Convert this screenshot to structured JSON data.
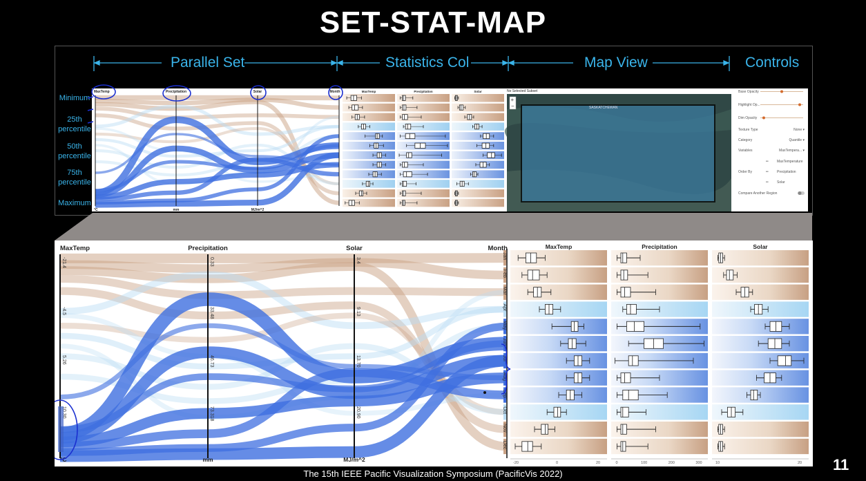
{
  "slide": {
    "title": "SET-STAT-MAP",
    "footer": "The 15th IEEE Pacific Visualization Symposium (PacificVis 2022)",
    "page_number": "11",
    "accent_color": "#3ab4ea",
    "annotation_color": "#1a2fd0"
  },
  "sections": [
    "Parallel Set",
    "Statistics Col",
    "Map View",
    "Controls"
  ],
  "percentiles": [
    "Minimum",
    "25th\npercentile",
    "50th\npercentile",
    "75th\npercentile",
    "Maximum"
  ],
  "parallel_set": {
    "axes": [
      {
        "name": "MaxTemp",
        "unit": "°C",
        "ticks": [
          "-21.4",
          "-4.5",
          "5.26",
          "10.30"
        ]
      },
      {
        "name": "Precipitation",
        "unit": "mm",
        "ticks": [
          "0.33",
          "33.48",
          "46.73",
          "73.318"
        ]
      },
      {
        "name": "Solar",
        "unit": "MJ/m^2",
        "ticks": [
          "3.4",
          "9.13",
          "13.70",
          "20.90"
        ]
      },
      {
        "name": "Month",
        "unit": "",
        "ticks": []
      }
    ],
    "months": [
      "Jan",
      "Feb",
      "Mar",
      "Apr",
      "May",
      "Jun",
      "Jul",
      "Aug",
      "Sep",
      "Oct",
      "Nov",
      "Dec"
    ]
  },
  "statistics": {
    "columns": [
      "MaxTemp",
      "Precipitation",
      "Solar"
    ],
    "axis_ticks": [
      [
        "-20",
        "0",
        "20"
      ],
      [
        "0",
        "100",
        "200",
        "300"
      ],
      [
        "10",
        "20"
      ]
    ],
    "tones": [
      "warm",
      "warm",
      "warm",
      "cool",
      "blue",
      "blue",
      "blue",
      "blue",
      "blue",
      "cool",
      "warm",
      "warm"
    ],
    "boxplots": {
      "MaxTemp": [
        {
          "wl": 0.08,
          "q1": 0.16,
          "med": 0.21,
          "q3": 0.27,
          "wh": 0.36
        },
        {
          "wl": 0.12,
          "q1": 0.18,
          "med": 0.23,
          "q3": 0.3,
          "wh": 0.38
        },
        {
          "wl": 0.18,
          "q1": 0.24,
          "med": 0.28,
          "q3": 0.32,
          "wh": 0.42
        },
        {
          "wl": 0.3,
          "q1": 0.36,
          "med": 0.4,
          "q3": 0.44,
          "wh": 0.52
        },
        {
          "wl": 0.43,
          "q1": 0.63,
          "med": 0.66,
          "q3": 0.7,
          "wh": 0.76
        },
        {
          "wl": 0.52,
          "q1": 0.6,
          "med": 0.64,
          "q3": 0.68,
          "wh": 0.78
        },
        {
          "wl": 0.58,
          "q1": 0.66,
          "med": 0.7,
          "q3": 0.74,
          "wh": 0.82
        },
        {
          "wl": 0.58,
          "q1": 0.66,
          "med": 0.7,
          "q3": 0.74,
          "wh": 0.82
        },
        {
          "wl": 0.5,
          "q1": 0.58,
          "med": 0.62,
          "q3": 0.66,
          "wh": 0.74
        },
        {
          "wl": 0.38,
          "q1": 0.45,
          "med": 0.49,
          "q3": 0.52,
          "wh": 0.58
        },
        {
          "wl": 0.25,
          "q1": 0.32,
          "med": 0.36,
          "q3": 0.39,
          "wh": 0.46
        },
        {
          "wl": 0.05,
          "q1": 0.12,
          "med": 0.18,
          "q3": 0.23,
          "wh": 0.32
        }
      ],
      "Precipitation": [
        {
          "wl": 0.06,
          "q1": 0.1,
          "med": 0.12,
          "q3": 0.16,
          "wh": 0.3
        },
        {
          "wl": 0.06,
          "q1": 0.1,
          "med": 0.13,
          "q3": 0.17,
          "wh": 0.38
        },
        {
          "wl": 0.06,
          "q1": 0.1,
          "med": 0.14,
          "q3": 0.2,
          "wh": 0.46
        },
        {
          "wl": 0.12,
          "q1": 0.16,
          "med": 0.2,
          "q3": 0.26,
          "wh": 0.5
        },
        {
          "wl": 0.06,
          "q1": 0.16,
          "med": 0.24,
          "q3": 0.34,
          "wh": 0.92
        },
        {
          "wl": 0.18,
          "q1": 0.34,
          "med": 0.44,
          "q3": 0.54,
          "wh": 0.96
        },
        {
          "wl": 0.04,
          "q1": 0.18,
          "med": 0.22,
          "q3": 0.28,
          "wh": 0.85
        },
        {
          "wl": 0.06,
          "q1": 0.1,
          "med": 0.14,
          "q3": 0.2,
          "wh": 0.5
        },
        {
          "wl": 0.06,
          "q1": 0.12,
          "med": 0.18,
          "q3": 0.28,
          "wh": 0.58
        },
        {
          "wl": 0.06,
          "q1": 0.1,
          "med": 0.12,
          "q3": 0.18,
          "wh": 0.36
        },
        {
          "wl": 0.06,
          "q1": 0.1,
          "med": 0.12,
          "q3": 0.16,
          "wh": 0.46
        },
        {
          "wl": 0.06,
          "q1": 0.1,
          "med": 0.12,
          "q3": 0.15,
          "wh": 0.38
        }
      ],
      "Solar": [
        {
          "wl": 0.06,
          "q1": 0.07,
          "med": 0.09,
          "q3": 0.11,
          "wh": 0.13
        },
        {
          "wl": 0.12,
          "q1": 0.15,
          "med": 0.18,
          "q3": 0.22,
          "wh": 0.26
        },
        {
          "wl": 0.25,
          "q1": 0.3,
          "med": 0.34,
          "q3": 0.38,
          "wh": 0.42
        },
        {
          "wl": 0.4,
          "q1": 0.44,
          "med": 0.48,
          "q3": 0.52,
          "wh": 0.58
        },
        {
          "wl": 0.55,
          "q1": 0.6,
          "med": 0.66,
          "q3": 0.72,
          "wh": 0.8
        },
        {
          "wl": 0.48,
          "q1": 0.58,
          "med": 0.65,
          "q3": 0.72,
          "wh": 0.8
        },
        {
          "wl": 0.6,
          "q1": 0.68,
          "med": 0.76,
          "q3": 0.82,
          "wh": 0.95
        },
        {
          "wl": 0.46,
          "q1": 0.54,
          "med": 0.6,
          "q3": 0.66,
          "wh": 0.72
        },
        {
          "wl": 0.36,
          "q1": 0.4,
          "med": 0.43,
          "q3": 0.47,
          "wh": 0.5
        },
        {
          "wl": 0.1,
          "q1": 0.16,
          "med": 0.2,
          "q3": 0.24,
          "wh": 0.32
        },
        {
          "wl": 0.06,
          "q1": 0.07,
          "med": 0.09,
          "q3": 0.11,
          "wh": 0.13
        },
        {
          "wl": 0.06,
          "q1": 0.07,
          "med": 0.09,
          "q3": 0.11,
          "wh": 0.13
        }
      ]
    }
  },
  "map": {
    "header": "No Selected Subset",
    "region_label": "SASKATCHEWAN",
    "zoom_in": "+",
    "zoom_out": "−"
  },
  "controls": {
    "sliders": [
      {
        "label": "Base Opacity",
        "value": 0.5
      },
      {
        "label": "Highlight Op...",
        "value": 0.92
      },
      {
        "label": "Dim Opacity",
        "value": 0.08
      }
    ],
    "selects": [
      {
        "label": "Texture Type",
        "value": "None"
      },
      {
        "label": "Category",
        "value": "Quantile"
      },
      {
        "label": "Variables",
        "value": "MaxTempera..."
      }
    ],
    "order_by_label": "Order By",
    "order_items": [
      "MaxTemperature",
      "Precipitation",
      "Solar"
    ],
    "compare_label": "Compare Another Region"
  }
}
